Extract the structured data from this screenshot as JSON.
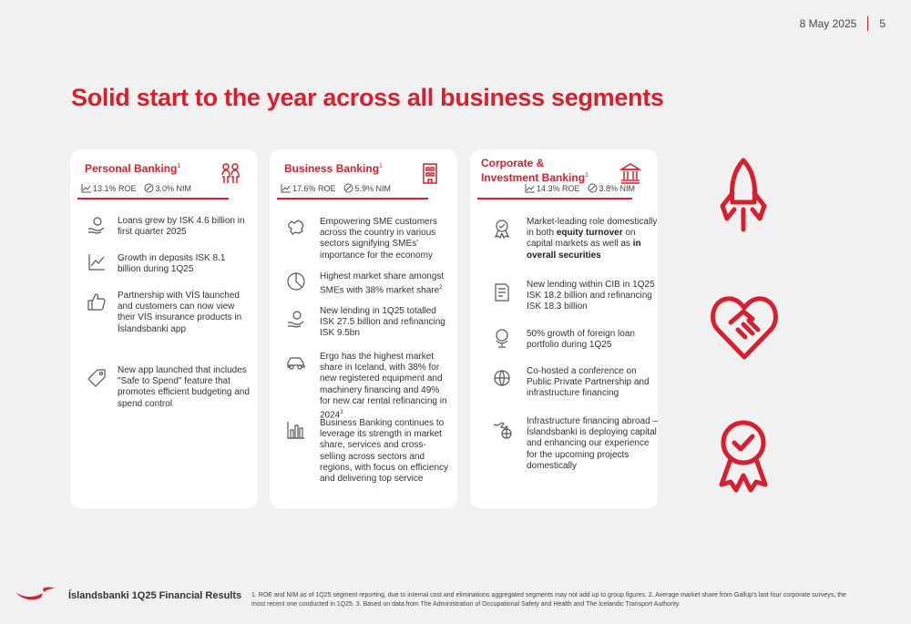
{
  "header": {
    "date": "8 May 2025",
    "page": "5"
  },
  "title": "Solid start to the year across all business segments",
  "cards": [
    {
      "title": "Personal Banking",
      "sup": "1",
      "roe": "13.1% ROE",
      "nim": "3.0% NIM",
      "items": [
        {
          "text": "Loans grew by ISK 4.6 billion in first quarter 2025"
        },
        {
          "text": "Growth in deposits ISK 8.1 billion during 1Q25"
        },
        {
          "text": "Partnership with VÍS launched and customers can now view their VÍS insurance products in Íslandsbanki app"
        },
        {
          "text": "New app launched that includes \"Safe to Spend\" feature that promotes efficient budgeting and spend control"
        }
      ]
    },
    {
      "title": "Business Banking",
      "sup": "1",
      "roe": "17.6% ROE",
      "nim": "5.9% NIM",
      "items": [
        {
          "text": "Empowering SME customers across the country in various sectors signifying SMEs' importance for the economy"
        },
        {
          "text": "Highest market share amongst SMEs with 38% market share",
          "sup": "2"
        },
        {
          "text": "New lending in 1Q25 totalled ISK 27.5 billion and refinancing ISK 9.5bn"
        },
        {
          "text": "Ergo has the highest market share in Iceland, with 38% for new registered equipment and machinery financing and 49% for new car rental refinancing in 2024",
          "sup": "3"
        },
        {
          "text": "Business Banking continues to leverage its strength in market share, services and cross-selling across sectors and regions, with focus on efficiency and delivering top service"
        }
      ]
    },
    {
      "title": "Corporate & Investment Banking",
      "sup": "1",
      "roe": "14.3% ROE",
      "nim": "3.8% NIM",
      "items": [
        {
          "pre": "Market-leading role domestically in both ",
          "b1": "equity turnover",
          "mid": " on capital markets as well as ",
          "b2": "in overall securities"
        },
        {
          "text": "New lending within CIB in 1Q25 ISK 18.2 billion and refinancing ISK 18.3 billion"
        },
        {
          "text": "50% growth of foreign loan portfolio during 1Q25"
        },
        {
          "text": "Co-hosted a conference on Public Private Partnership and infrastructure financing"
        },
        {
          "text": "Infrastructure financing abroad – Íslandsbanki is deploying capital and enhancing our experience for the upcoming projects domestically"
        }
      ]
    }
  ],
  "footer": {
    "title": "Íslandsbanki 1Q25 Financial Results",
    "note": "1. ROE and NIM as of 1Q25 segment reporting, due to internal cost and eliminations aggregated segments may not add up to group figures. 2. Average market share from Gallup's last four corporate surveys, the most recent one conducted in 1Q25. 3. Based on data from The Administration of Occupational Safety and Health and The Icelandic Transport Authority."
  },
  "colors": {
    "accent": "#d6202f",
    "background": "#f1f1f1",
    "card": "#ffffff"
  }
}
